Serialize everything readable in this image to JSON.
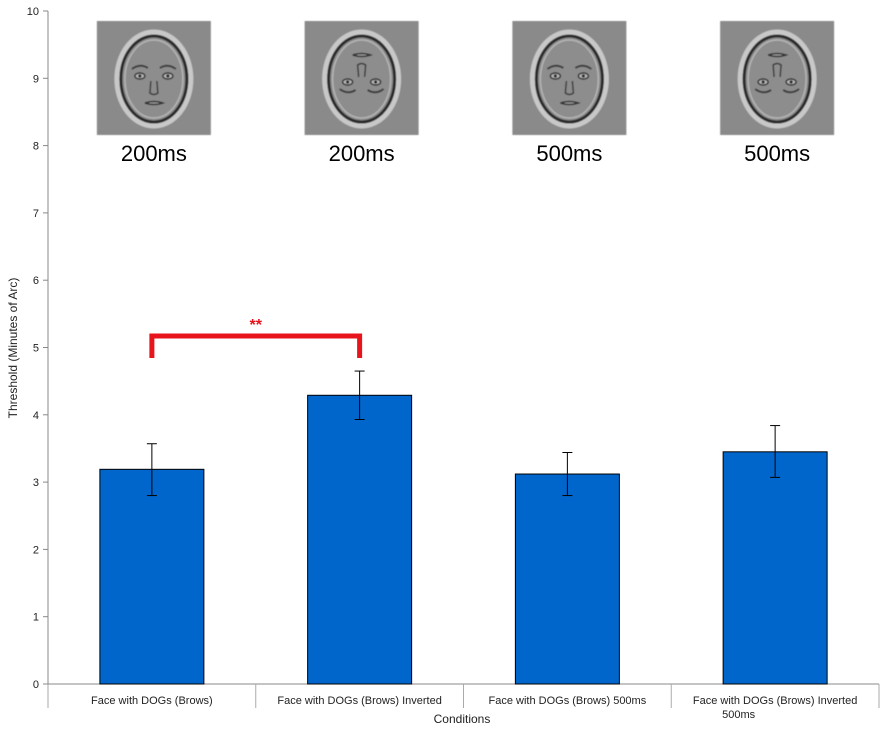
{
  "chart_data": {
    "type": "bar",
    "xlabel": "Conditions",
    "ylabel": "Threshold (Minutes of Arc)",
    "ylim": [
      0,
      10
    ],
    "yticks": [
      "0",
      "1",
      "2",
      "3",
      "4",
      "5",
      "6",
      "7",
      "8",
      "9",
      "10"
    ],
    "grid": false,
    "bar_color": "#0066cc",
    "categories": [
      [
        "Face with DOGs (Brows)"
      ],
      [
        "Face with DOGs (Brows) Inverted"
      ],
      [
        "Face with DOGs (Brows) 500ms"
      ],
      [
        "Face with DOGs (Brows) Inverted",
        "500ms"
      ]
    ],
    "values": [
      3.19,
      4.29,
      3.12,
      3.45
    ],
    "error_low": [
      2.8,
      3.93,
      2.8,
      3.07
    ],
    "error_high": [
      3.57,
      4.65,
      3.44,
      3.84
    ],
    "stimulus_images": [
      {
        "icon": "upright-face-icon",
        "label": "200ms"
      },
      {
        "icon": "inverted-face-icon",
        "label": "200ms"
      },
      {
        "icon": "upright-face-icon",
        "label": "500ms"
      },
      {
        "icon": "inverted-face-icon",
        "label": "500ms"
      }
    ],
    "significance": {
      "from": 0,
      "to": 1,
      "label": "**",
      "color": "#e8141b"
    }
  }
}
